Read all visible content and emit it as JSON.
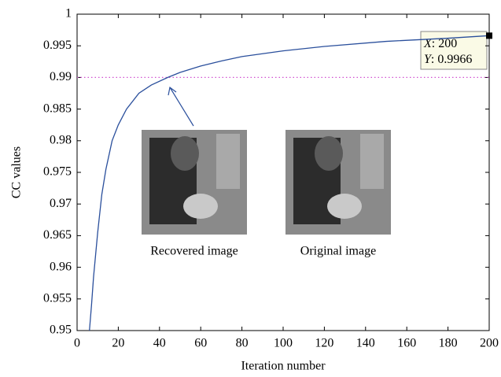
{
  "chart_data": {
    "type": "line",
    "xlabel": "Iteration number",
    "ylabel": "CC values",
    "x": [
      6,
      7,
      8,
      9,
      10,
      12,
      14,
      17,
      20,
      24,
      30,
      36,
      44,
      50,
      60,
      70,
      80,
      100,
      120,
      150,
      180,
      200
    ],
    "series": [
      {
        "color": "#2a4f9c",
        "values": [
          0.95,
          0.954,
          0.9585,
          0.962,
          0.9655,
          0.9715,
          0.9755,
          0.98,
          0.9825,
          0.985,
          0.9875,
          0.9888,
          0.99,
          0.9908,
          0.9918,
          0.9926,
          0.9933,
          0.9942,
          0.9949,
          0.9957,
          0.9962,
          0.9966
        ]
      }
    ],
    "xlim": [
      0,
      200
    ],
    "xticks": [
      0,
      20,
      40,
      60,
      80,
      100,
      120,
      140,
      160,
      180,
      200
    ],
    "ylim": [
      0.95,
      1
    ],
    "yticks": [
      0.95,
      0.955,
      0.96,
      0.965,
      0.97,
      0.975,
      0.98,
      0.985,
      0.99,
      0.995,
      1
    ],
    "reference_line": {
      "y": 0.99,
      "color": "#d04fd0"
    },
    "datatip": {
      "x": 200,
      "y": 0.9966,
      "x_name": "X",
      "x_text": ": 200",
      "y_name": "Y",
      "y_text": ": 0.9966"
    },
    "annotations": [
      "Recovered image",
      "Original image"
    ]
  }
}
